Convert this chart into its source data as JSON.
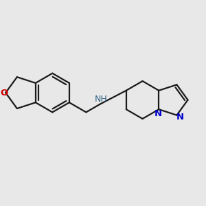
{
  "background_color": "#E8E8E8",
  "bond_color": "#1a1a1a",
  "bond_width": 1.6,
  "O_color": "#CC0000",
  "N_color": "#0000CC",
  "NH_color": "#336688",
  "figsize": [
    3.0,
    3.0
  ],
  "dpi": 100,
  "xlim": [
    0,
    10
  ],
  "ylim": [
    0,
    10
  ]
}
